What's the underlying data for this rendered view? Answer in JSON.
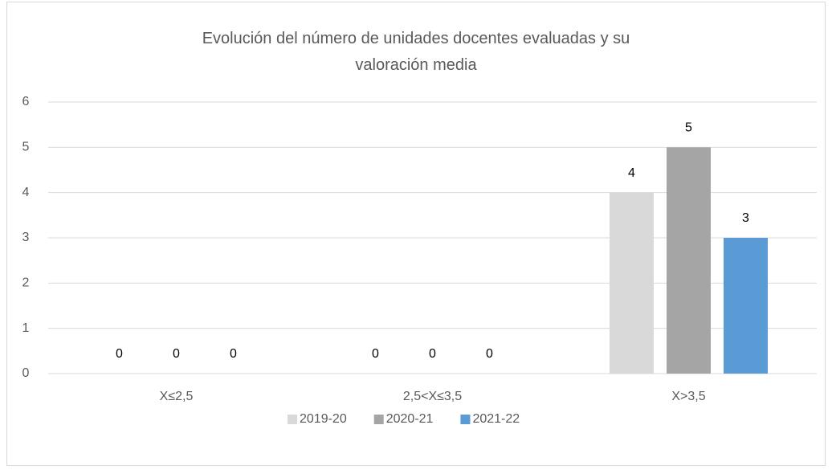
{
  "chart_data": {
    "type": "bar",
    "title": "Evolución del número de unidades docentes evaluadas y su valoración media",
    "categories": [
      "X≤2,5",
      "2,5<X≤3,5",
      "X>3,5"
    ],
    "series": [
      {
        "name": "2019-20",
        "color": "#d9d9d9",
        "values": [
          0,
          0,
          4
        ]
      },
      {
        "name": "2020-21",
        "color": "#a5a5a5",
        "values": [
          0,
          0,
          5
        ]
      },
      {
        "name": "2021-22",
        "color": "#5b9bd5",
        "values": [
          0,
          0,
          3
        ]
      }
    ],
    "ylim": [
      0,
      6
    ],
    "yticks": [
      0,
      1,
      2,
      3,
      4,
      5,
      6
    ],
    "grid": true,
    "legend": "bottom",
    "data_labels": true
  }
}
